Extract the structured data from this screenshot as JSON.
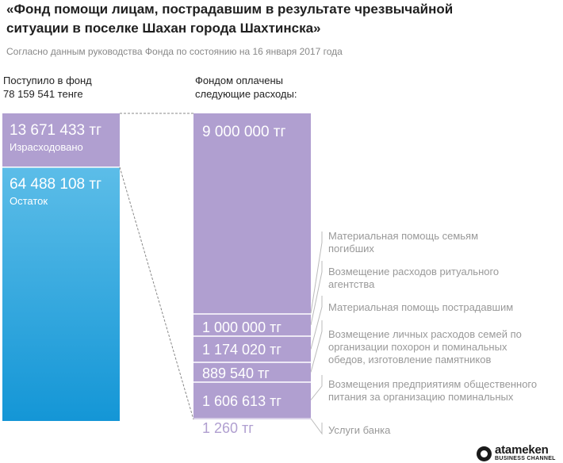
{
  "header": {
    "title": "«Фонд помощи лицам, пострадавшим в результате чрезвычайной\nситуации в поселке Шахан города Шахтинска»",
    "subtitle": "Согласно данным руководства Фонда по состоянию на 16 января 2017 года"
  },
  "left_column": {
    "heading": "Поступило в фонд\n78 159 541 тенге"
  },
  "right_column": {
    "heading": "Фондом оплачены\nследующие расходы:"
  },
  "colors": {
    "purple": "#b09fd0",
    "blue_top": "#5cbde8",
    "blue_bottom": "#1496d6",
    "label_gray": "#999999",
    "connector_gray": "#888888"
  },
  "chart_data": [
    {
      "type": "bar",
      "stacked": true,
      "name": "Поступило в фонд",
      "total": 78159541,
      "segments": [
        {
          "value": 13671433,
          "value_label": "13 671 433 тг",
          "label": "Израсходовано",
          "color": "#b09fd0"
        },
        {
          "value": 64488108,
          "value_label": "64 488 108 тг",
          "label": "Остаток",
          "color": "#2aa6e0"
        }
      ]
    },
    {
      "type": "bar",
      "stacked": true,
      "name": "Фондом оплачены следующие расходы",
      "total": 13671433,
      "segments": [
        {
          "value": 9000000,
          "value_label": "9 000 000 тг",
          "label": "Материальная помощь семьям погибших"
        },
        {
          "value": 1000000,
          "value_label": "1 000 000 тг",
          "label": "Возмещение расходов ритуального агентства"
        },
        {
          "value": 1174020,
          "value_label": "1 174 020 тг",
          "label": "Материальная помощь пострадавшим"
        },
        {
          "value": 889540,
          "value_label": "889 540 тг",
          "label": "Возмещение личных расходов семей по организации похорон и поминальных обедов, изготовление памятников"
        },
        {
          "value": 1606613,
          "value_label": "1 606 613 тг",
          "label": "Возмещение предприятиям общественного питания за организацию поминальных"
        },
        {
          "value": 1260,
          "value_label": "1 260 тг",
          "label": "Услуги банка"
        }
      ]
    }
  ],
  "logo": {
    "name": "atameken",
    "sub": "BUSINESS CHANNEL"
  }
}
